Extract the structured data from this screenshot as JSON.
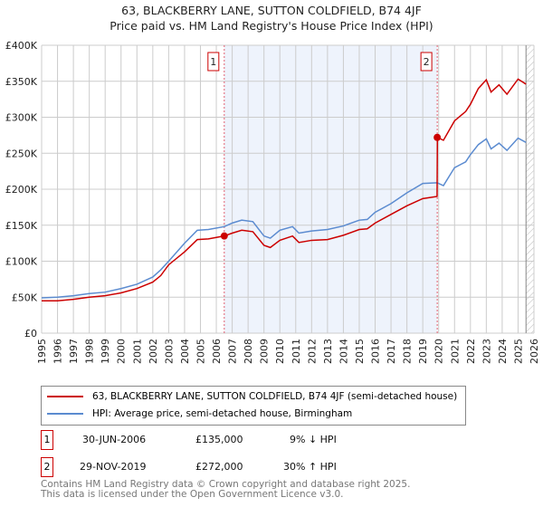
{
  "title": "63, BLACKBERRY LANE, SUTTON COLDFIELD, B74 4JF",
  "subtitle": "Price paid vs. HM Land Registry's House Price Index (HPI)",
  "colors": {
    "property": "#cc0000",
    "hpi": "#5b8bd0",
    "shade": "#eef3fc"
  },
  "chart_data": {
    "type": "line",
    "ylim": [
      0,
      400000
    ],
    "xlim": [
      1995,
      2026
    ],
    "y_ticks": [
      {
        "v": 0,
        "label": "£0"
      },
      {
        "v": 50000,
        "label": "£50K"
      },
      {
        "v": 100000,
        "label": "£100K"
      },
      {
        "v": 150000,
        "label": "£150K"
      },
      {
        "v": 200000,
        "label": "£200K"
      },
      {
        "v": 250000,
        "label": "£250K"
      },
      {
        "v": 300000,
        "label": "£300K"
      },
      {
        "v": 350000,
        "label": "£350K"
      },
      {
        "v": 400000,
        "label": "£400K"
      }
    ],
    "x_ticks": [
      "1995",
      "1996",
      "1997",
      "1998",
      "1999",
      "2000",
      "2001",
      "2002",
      "2003",
      "2004",
      "2005",
      "2006",
      "2007",
      "2008",
      "2009",
      "2010",
      "2011",
      "2012",
      "2013",
      "2014",
      "2015",
      "2016",
      "2017",
      "2018",
      "2019",
      "2020",
      "2021",
      "2022",
      "2023",
      "2024",
      "2025",
      "2026"
    ],
    "series": [
      {
        "name": "63, BLACKBERRY LANE, SUTTON COLDFIELD, B74 4JF (semi-detached house)",
        "color": "#cc0000",
        "x": [
          1995,
          1996,
          1997,
          1998,
          1999,
          2000,
          2001,
          2002,
          2002.5,
          2003,
          2004,
          2004.8,
          2005.5,
          2006.5,
          2007,
          2007.6,
          2008.3,
          2009,
          2009.4,
          2010,
          2010.8,
          2011.2,
          2012,
          2013,
          2014,
          2015,
          2015.5,
          2016,
          2017,
          2018,
          2019,
          2019.9,
          2019.92,
          2020.3,
          2021,
          2021.7,
          2022,
          2022.5,
          2023,
          2023.3,
          2023.8,
          2024.3,
          2025,
          2025.5
        ],
        "y": [
          45000,
          45000,
          47000,
          50000,
          52000,
          56000,
          62000,
          71000,
          80000,
          95000,
          113000,
          130000,
          131000,
          135000,
          139000,
          143000,
          141000,
          122000,
          119000,
          129000,
          135000,
          126000,
          129000,
          130000,
          136000,
          144000,
          145000,
          153000,
          165000,
          177000,
          187000,
          190000,
          272000,
          268000,
          295000,
          308000,
          318000,
          340000,
          352000,
          335000,
          345000,
          332000,
          353000,
          346000
        ]
      },
      {
        "name": "HPI: Average price, semi-detached house, Birmingham",
        "color": "#5b8bd0",
        "x": [
          1995,
          1996,
          1997,
          1998,
          1999,
          2000,
          2001,
          2002,
          2002.5,
          2003,
          2004,
          2004.8,
          2005.5,
          2006.5,
          2007,
          2007.6,
          2008.3,
          2009,
          2009.4,
          2010,
          2010.8,
          2011.2,
          2012,
          2013,
          2014,
          2015,
          2015.5,
          2016,
          2017,
          2018,
          2019,
          2019.9,
          2020.3,
          2021,
          2021.7,
          2022,
          2022.5,
          2023,
          2023.3,
          2023.8,
          2024.3,
          2025,
          2025.5
        ],
        "y": [
          49000,
          50000,
          52000,
          55000,
          57000,
          62000,
          68000,
          78000,
          88000,
          100000,
          125000,
          143000,
          144000,
          148000,
          153000,
          157000,
          155000,
          135000,
          132000,
          143000,
          148000,
          139000,
          142000,
          144000,
          149000,
          157000,
          158000,
          168000,
          180000,
          195000,
          208000,
          209000,
          205000,
          230000,
          238000,
          248000,
          262000,
          270000,
          256000,
          264000,
          254000,
          271000,
          265000
        ]
      }
    ],
    "sales": [
      {
        "id": "1",
        "x": 2006.5,
        "y": 135000
      },
      {
        "id": "2",
        "x": 2019.91,
        "y": 272000
      }
    ],
    "shaded_range": [
      2006.5,
      2019.91
    ],
    "forecast_hatch_from": 2025.5
  },
  "legend": {
    "property": "63, BLACKBERRY LANE, SUTTON COLDFIELD, B74 4JF (semi-detached house)",
    "hpi": "HPI: Average price, semi-detached house, Birmingham"
  },
  "transactions": [
    {
      "id": "1",
      "date": "30-JUN-2006",
      "price": "£135,000",
      "hpi": "9% ↓ HPI"
    },
    {
      "id": "2",
      "date": "29-NOV-2019",
      "price": "£272,000",
      "hpi": "30% ↑ HPI"
    }
  ],
  "footer": {
    "line1": "Contains HM Land Registry data © Crown copyright and database right 2025.",
    "line2": "This data is licensed under the Open Government Licence v3.0."
  }
}
